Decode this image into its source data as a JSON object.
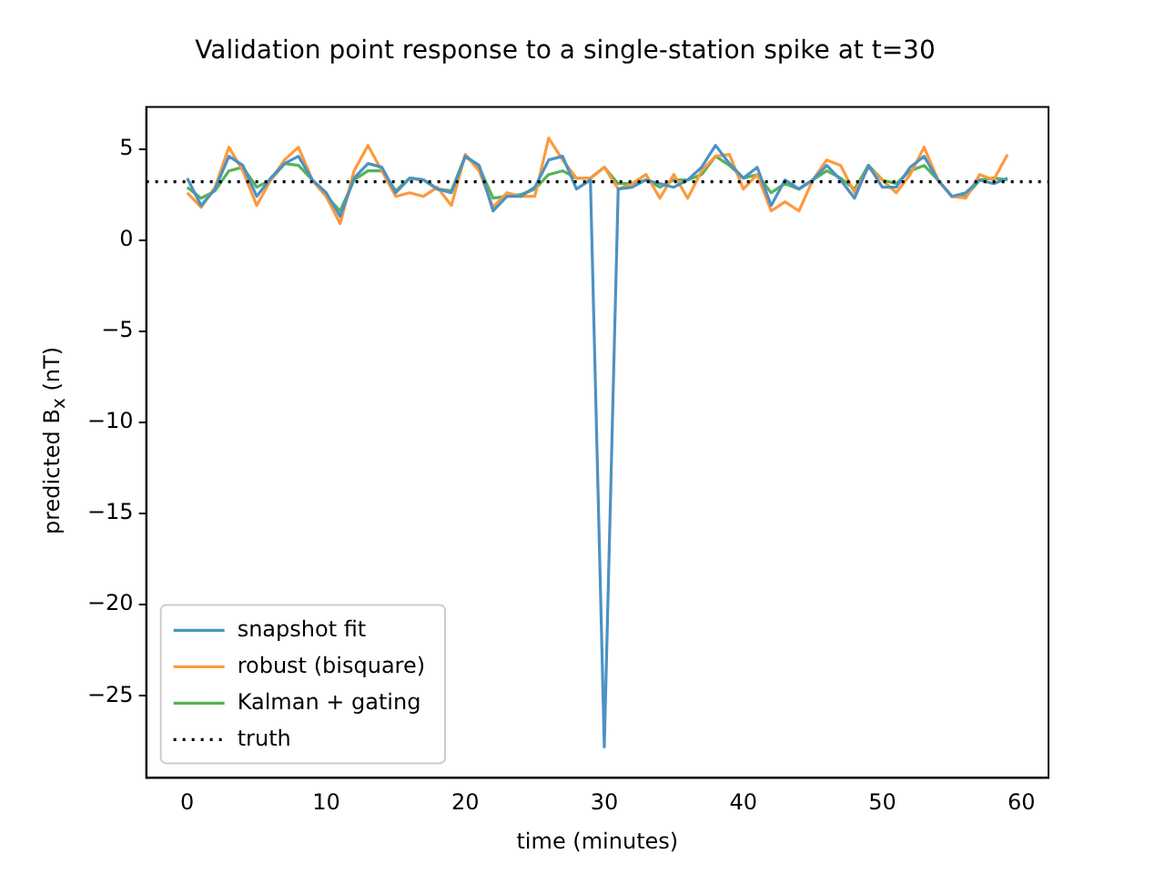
{
  "chart_data": {
    "type": "line",
    "title": "Validation point response to a single-station spike at t=30",
    "xlabel": "time (minutes)",
    "ylabel": "predicted B$_{x}$ (nT)",
    "x": [
      0,
      1,
      2,
      3,
      4,
      5,
      6,
      7,
      8,
      9,
      10,
      11,
      12,
      13,
      14,
      15,
      16,
      17,
      18,
      19,
      20,
      21,
      22,
      23,
      24,
      25,
      26,
      27,
      28,
      29,
      30,
      31,
      32,
      33,
      34,
      35,
      36,
      37,
      38,
      39,
      40,
      41,
      42,
      43,
      44,
      45,
      46,
      47,
      48,
      49,
      50,
      51,
      52,
      53,
      54,
      55,
      56,
      57,
      58,
      59
    ],
    "series": [
      {
        "name": "snapshot fit",
        "color": "#4c92c3",
        "values": [
          3.4,
          1.9,
          2.8,
          4.6,
          4.1,
          2.4,
          3.4,
          4.2,
          4.6,
          3.3,
          2.6,
          1.3,
          3.4,
          4.2,
          4.0,
          2.6,
          3.4,
          3.3,
          2.8,
          2.6,
          4.6,
          4.1,
          1.6,
          2.4,
          2.4,
          2.9,
          4.4,
          4.6,
          2.8,
          3.3,
          -27.8,
          2.8,
          2.9,
          3.3,
          3.1,
          2.9,
          3.3,
          4.0,
          5.2,
          4.2,
          3.4,
          4.0,
          1.9,
          3.3,
          2.8,
          3.3,
          4.1,
          3.3,
          2.3,
          4.1,
          2.9,
          2.9,
          4.0,
          4.6,
          3.3,
          2.4,
          2.6,
          3.3,
          3.1,
          3.4
        ]
      },
      {
        "name": "robust (bisquare)",
        "color": "#ff993e",
        "values": [
          2.6,
          1.8,
          2.9,
          5.1,
          3.8,
          1.9,
          3.3,
          4.4,
          5.1,
          3.3,
          2.4,
          0.9,
          3.8,
          5.2,
          3.8,
          2.4,
          2.6,
          2.4,
          2.9,
          1.9,
          4.7,
          3.8,
          1.8,
          2.6,
          2.4,
          2.4,
          5.6,
          4.4,
          3.4,
          3.4,
          4.0,
          2.8,
          3.1,
          3.6,
          2.3,
          3.6,
          2.3,
          3.8,
          4.6,
          4.7,
          2.8,
          3.6,
          1.6,
          2.1,
          1.6,
          3.3,
          4.4,
          4.1,
          2.6,
          4.0,
          3.3,
          2.6,
          3.6,
          5.1,
          3.3,
          2.4,
          2.3,
          3.6,
          3.3,
          4.7
        ]
      },
      {
        "name": "Kalman + gating",
        "color": "#56b356",
        "values": [
          2.9,
          2.3,
          2.7,
          3.8,
          4.0,
          2.9,
          3.3,
          4.2,
          4.1,
          3.3,
          2.4,
          1.6,
          3.3,
          3.8,
          3.8,
          2.7,
          3.4,
          3.3,
          2.8,
          2.7,
          4.6,
          4.0,
          2.3,
          2.4,
          2.5,
          2.8,
          3.6,
          3.8,
          3.4,
          3.4,
          4.0,
          3.1,
          3.1,
          3.3,
          2.9,
          3.3,
          3.3,
          3.6,
          4.6,
          4.1,
          3.4,
          3.6,
          2.6,
          3.1,
          2.8,
          3.3,
          3.8,
          3.4,
          2.8,
          4.1,
          3.3,
          3.1,
          3.8,
          4.1,
          3.3,
          2.4,
          2.4,
          3.3,
          3.4,
          3.3
        ]
      }
    ],
    "ref_lines": [
      {
        "axis": "y",
        "value": 3.2,
        "label": "truth",
        "color": "#000000",
        "line_style": "dotted"
      }
    ],
    "xlim": [
      -2.95,
      61.95
    ],
    "xticks": [
      0,
      10,
      20,
      30,
      40,
      50,
      60
    ],
    "ylim": [
      -29.5,
      7.3
    ],
    "yticks": [
      -25,
      -20,
      -15,
      -10,
      -5,
      0,
      5
    ],
    "grid": false,
    "legend": "bottom left",
    "marker": "none",
    "line_style": "solid"
  }
}
